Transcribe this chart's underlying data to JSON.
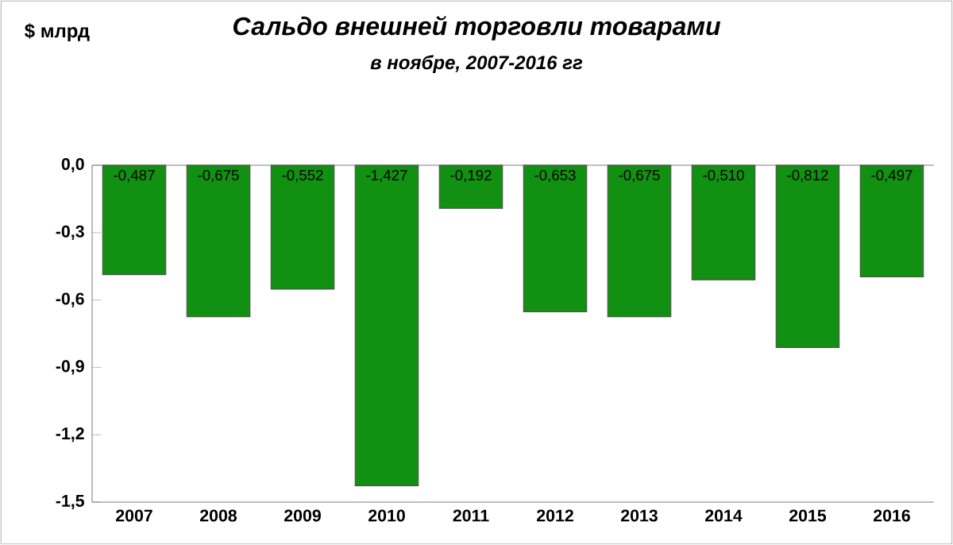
{
  "chart_data": {
    "type": "bar",
    "title": "Сальдо внешней торговли товарами",
    "subtitle": "в ноябре, 2007-2016 гг",
    "annotations": [
      "$ млрд"
    ],
    "categories": [
      "2007",
      "2008",
      "2009",
      "2010",
      "2011",
      "2012",
      "2013",
      "2014",
      "2015",
      "2016"
    ],
    "values": [
      -0.487,
      -0.675,
      -0.552,
      -1.427,
      -0.192,
      -0.653,
      -0.675,
      -0.51,
      -0.812,
      -0.497
    ],
    "value_labels": [
      "-0,487",
      "-0,675",
      "-0,552",
      "-1,427",
      "-0,192",
      "-0,653",
      "-0,675",
      "-0,510",
      "-0,812",
      "-0,497"
    ],
    "color": "#119011",
    "ylim": [
      -1.5,
      0
    ],
    "yticks": [
      {
        "value": 0,
        "label": "0,0"
      },
      {
        "value": -0.3,
        "label": "-0,3"
      },
      {
        "value": -0.6,
        "label": "-0,6"
      },
      {
        "value": -0.9,
        "label": "-0,9"
      },
      {
        "value": -1.2,
        "label": "-1,2"
      },
      {
        "value": -1.5,
        "label": "-1,5"
      }
    ],
    "grid": false
  }
}
